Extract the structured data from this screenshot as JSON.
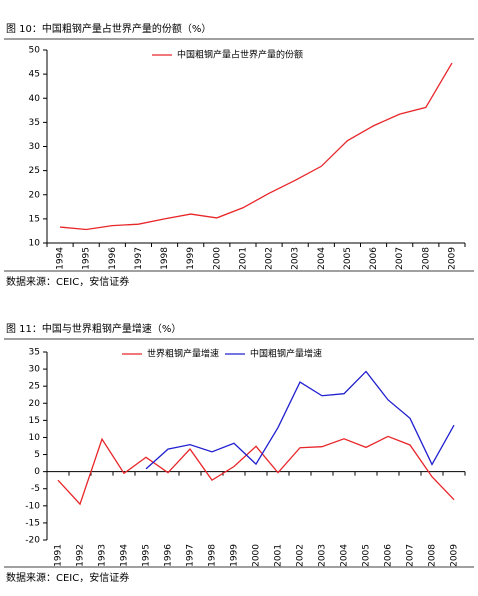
{
  "chart_data": [
    {
      "type": "line",
      "title": "图 10：中国粗钢产量占世界产量的份额（%）",
      "source": "数据来源：CEIC，安信证券",
      "categories": [
        "1994",
        "1995",
        "1996",
        "1997",
        "1998",
        "1999",
        "2000",
        "2001",
        "2002",
        "2003",
        "2004",
        "2005",
        "2006",
        "2007",
        "2008",
        "2009"
      ],
      "series": [
        {
          "name": "中国粗钢产量占世界产量的份额",
          "color": "#e8262a",
          "values": [
            13.3,
            12.8,
            13.6,
            13.9,
            15.0,
            16.0,
            15.2,
            17.3,
            20.3,
            23.0,
            25.9,
            31.2,
            34.3,
            36.7,
            38.1,
            47.3
          ]
        }
      ],
      "ylim": [
        10,
        50
      ],
      "yticks": [
        10,
        15,
        20,
        25,
        30,
        35,
        40,
        45,
        50
      ],
      "grid": false,
      "legend": "top"
    },
    {
      "type": "line",
      "title": "图 11：中国与世界粗钢产量增速（%）",
      "source": "数据来源：CEIC，安信证券",
      "categories": [
        "1991",
        "1992",
        "1993",
        "1994",
        "1995",
        "1996",
        "1997",
        "1998",
        "1999",
        "2000",
        "2001",
        "2002",
        "2003",
        "2004",
        "2005",
        "2006",
        "2007",
        "2008",
        "2009"
      ],
      "series": [
        {
          "name": "世界粗钢产量增速",
          "color": "#e8262a",
          "values": [
            -2.5,
            -9.5,
            9.5,
            -0.5,
            4.2,
            -0.3,
            6.6,
            -2.5,
            1.5,
            7.4,
            -0.3,
            7.0,
            7.3,
            9.6,
            7.1,
            10.3,
            7.8,
            -1.5,
            -8.2
          ]
        },
        {
          "name": "中国粗钢产量增速",
          "color": "#2020d0",
          "values": [
            null,
            null,
            null,
            null,
            0.8,
            6.6,
            7.9,
            5.8,
            8.3,
            2.2,
            12.9,
            26.2,
            22.2,
            22.8,
            29.3,
            21.0,
            15.6,
            2.1,
            13.6
          ]
        }
      ],
      "ylim": [
        -20,
        35
      ],
      "yticks": [
        -20,
        -15,
        -10,
        -5,
        0,
        5,
        10,
        15,
        20,
        25,
        30,
        35
      ],
      "grid": false,
      "legend": "top"
    }
  ]
}
